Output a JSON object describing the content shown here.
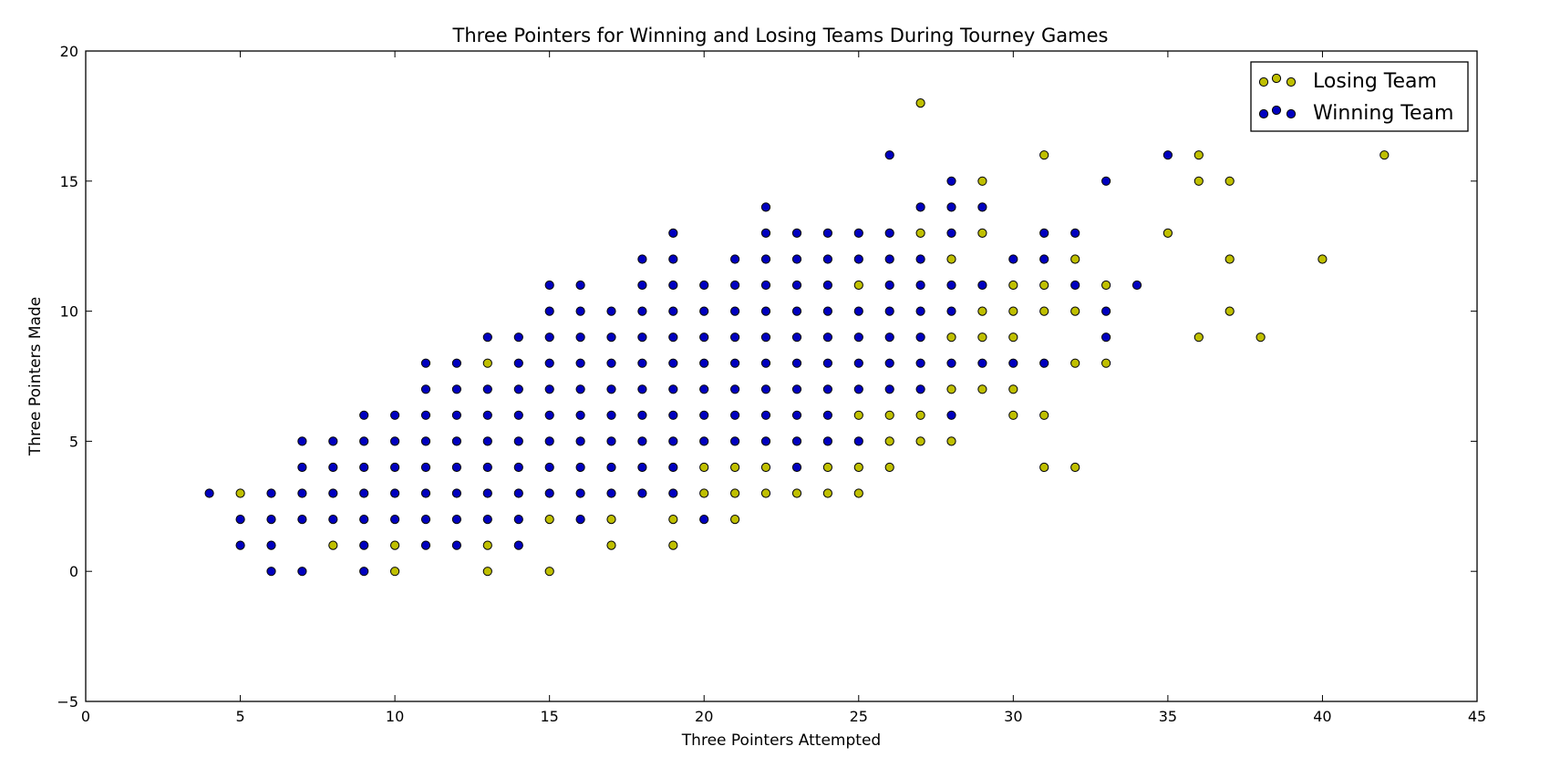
{
  "chart_data": {
    "type": "scatter",
    "title": "Three Pointers for Winning and Losing Teams During Tourney Games",
    "xlabel": "Three Pointers Attempted",
    "ylabel": "Three Pointers Made",
    "xlim": [
      0,
      45
    ],
    "ylim": [
      -5,
      20
    ],
    "xticks": [
      0,
      5,
      10,
      15,
      20,
      25,
      30,
      35,
      40,
      45
    ],
    "yticks": [
      -5,
      0,
      5,
      10,
      15,
      20
    ],
    "grid": false,
    "legend_position": "top-right",
    "series": [
      {
        "name": "Losing Team",
        "color": "#bfbf00",
        "points": [
          [
            5,
            3
          ],
          [
            10,
            0
          ],
          [
            10,
            1
          ],
          [
            8,
            1
          ],
          [
            13,
            0
          ],
          [
            13,
            1
          ],
          [
            13,
            8
          ],
          [
            15,
            0
          ],
          [
            15,
            2
          ],
          [
            17,
            1
          ],
          [
            17,
            2
          ],
          [
            19,
            1
          ],
          [
            19,
            2
          ],
          [
            20,
            3
          ],
          [
            20,
            4
          ],
          [
            21,
            2
          ],
          [
            21,
            3
          ],
          [
            21,
            4
          ],
          [
            22,
            3
          ],
          [
            22,
            4
          ],
          [
            23,
            3
          ],
          [
            24,
            3
          ],
          [
            24,
            4
          ],
          [
            25,
            3
          ],
          [
            25,
            4
          ],
          [
            25,
            6
          ],
          [
            25,
            11
          ],
          [
            26,
            4
          ],
          [
            26,
            5
          ],
          [
            26,
            6
          ],
          [
            27,
            5
          ],
          [
            27,
            6
          ],
          [
            27,
            13
          ],
          [
            27,
            18
          ],
          [
            28,
            5
          ],
          [
            28,
            7
          ],
          [
            28,
            9
          ],
          [
            28,
            12
          ],
          [
            29,
            7
          ],
          [
            29,
            9
          ],
          [
            29,
            10
          ],
          [
            29,
            13
          ],
          [
            29,
            15
          ],
          [
            30,
            6
          ],
          [
            30,
            7
          ],
          [
            30,
            9
          ],
          [
            30,
            10
          ],
          [
            30,
            11
          ],
          [
            31,
            4
          ],
          [
            31,
            6
          ],
          [
            31,
            10
          ],
          [
            31,
            11
          ],
          [
            31,
            16
          ],
          [
            32,
            4
          ],
          [
            32,
            8
          ],
          [
            32,
            10
          ],
          [
            32,
            12
          ],
          [
            33,
            8
          ],
          [
            33,
            11
          ],
          [
            35,
            13
          ],
          [
            36,
            9
          ],
          [
            36,
            15
          ],
          [
            36,
            16
          ],
          [
            37,
            10
          ],
          [
            37,
            12
          ],
          [
            37,
            15
          ],
          [
            38,
            9
          ],
          [
            40,
            12
          ],
          [
            42,
            16
          ]
        ]
      },
      {
        "name": "Winning Team",
        "color": "#0000bf",
        "points": [
          [
            4,
            3
          ],
          [
            5,
            1
          ],
          [
            5,
            2
          ],
          [
            6,
            0
          ],
          [
            6,
            1
          ],
          [
            6,
            2
          ],
          [
            6,
            3
          ],
          [
            7,
            0
          ],
          [
            7,
            2
          ],
          [
            7,
            3
          ],
          [
            7,
            4
          ],
          [
            7,
            5
          ],
          [
            8,
            2
          ],
          [
            8,
            3
          ],
          [
            8,
            4
          ],
          [
            8,
            5
          ],
          [
            9,
            0
          ],
          [
            9,
            1
          ],
          [
            9,
            2
          ],
          [
            9,
            3
          ],
          [
            9,
            4
          ],
          [
            9,
            5
          ],
          [
            9,
            6
          ],
          [
            10,
            2
          ],
          [
            10,
            3
          ],
          [
            10,
            4
          ],
          [
            10,
            5
          ],
          [
            10,
            6
          ],
          [
            11,
            1
          ],
          [
            11,
            2
          ],
          [
            11,
            3
          ],
          [
            11,
            4
          ],
          [
            11,
            5
          ],
          [
            11,
            6
          ],
          [
            11,
            7
          ],
          [
            11,
            8
          ],
          [
            12,
            1
          ],
          [
            12,
            2
          ],
          [
            12,
            3
          ],
          [
            12,
            4
          ],
          [
            12,
            5
          ],
          [
            12,
            6
          ],
          [
            12,
            7
          ],
          [
            12,
            8
          ],
          [
            13,
            2
          ],
          [
            13,
            3
          ],
          [
            13,
            4
          ],
          [
            13,
            5
          ],
          [
            13,
            6
          ],
          [
            13,
            7
          ],
          [
            13,
            9
          ],
          [
            14,
            1
          ],
          [
            14,
            2
          ],
          [
            14,
            3
          ],
          [
            14,
            4
          ],
          [
            14,
            5
          ],
          [
            14,
            6
          ],
          [
            14,
            7
          ],
          [
            14,
            8
          ],
          [
            14,
            9
          ],
          [
            15,
            3
          ],
          [
            15,
            4
          ],
          [
            15,
            5
          ],
          [
            15,
            6
          ],
          [
            15,
            7
          ],
          [
            15,
            8
          ],
          [
            15,
            9
          ],
          [
            15,
            10
          ],
          [
            15,
            11
          ],
          [
            16,
            2
          ],
          [
            16,
            3
          ],
          [
            16,
            4
          ],
          [
            16,
            5
          ],
          [
            16,
            6
          ],
          [
            16,
            7
          ],
          [
            16,
            8
          ],
          [
            16,
            9
          ],
          [
            16,
            10
          ],
          [
            16,
            11
          ],
          [
            17,
            3
          ],
          [
            17,
            4
          ],
          [
            17,
            5
          ],
          [
            17,
            6
          ],
          [
            17,
            7
          ],
          [
            17,
            8
          ],
          [
            17,
            9
          ],
          [
            17,
            10
          ],
          [
            18,
            3
          ],
          [
            18,
            4
          ],
          [
            18,
            5
          ],
          [
            18,
            6
          ],
          [
            18,
            7
          ],
          [
            18,
            8
          ],
          [
            18,
            9
          ],
          [
            18,
            10
          ],
          [
            18,
            11
          ],
          [
            18,
            12
          ],
          [
            19,
            3
          ],
          [
            19,
            4
          ],
          [
            19,
            5
          ],
          [
            19,
            6
          ],
          [
            19,
            7
          ],
          [
            19,
            8
          ],
          [
            19,
            9
          ],
          [
            19,
            10
          ],
          [
            19,
            11
          ],
          [
            19,
            12
          ],
          [
            19,
            13
          ],
          [
            20,
            2
          ],
          [
            20,
            5
          ],
          [
            20,
            6
          ],
          [
            20,
            7
          ],
          [
            20,
            8
          ],
          [
            20,
            9
          ],
          [
            20,
            10
          ],
          [
            20,
            11
          ],
          [
            21,
            5
          ],
          [
            21,
            6
          ],
          [
            21,
            7
          ],
          [
            21,
            8
          ],
          [
            21,
            9
          ],
          [
            21,
            10
          ],
          [
            21,
            11
          ],
          [
            21,
            12
          ],
          [
            22,
            5
          ],
          [
            22,
            6
          ],
          [
            22,
            7
          ],
          [
            22,
            8
          ],
          [
            22,
            9
          ],
          [
            22,
            10
          ],
          [
            22,
            11
          ],
          [
            22,
            12
          ],
          [
            22,
            13
          ],
          [
            22,
            14
          ],
          [
            23,
            4
          ],
          [
            23,
            5
          ],
          [
            23,
            6
          ],
          [
            23,
            7
          ],
          [
            23,
            8
          ],
          [
            23,
            9
          ],
          [
            23,
            10
          ],
          [
            23,
            11
          ],
          [
            23,
            12
          ],
          [
            23,
            13
          ],
          [
            24,
            5
          ],
          [
            24,
            6
          ],
          [
            24,
            7
          ],
          [
            24,
            8
          ],
          [
            24,
            9
          ],
          [
            24,
            10
          ],
          [
            24,
            11
          ],
          [
            24,
            12
          ],
          [
            24,
            13
          ],
          [
            25,
            5
          ],
          [
            25,
            7
          ],
          [
            25,
            8
          ],
          [
            25,
            9
          ],
          [
            25,
            10
          ],
          [
            25,
            12
          ],
          [
            25,
            13
          ],
          [
            26,
            7
          ],
          [
            26,
            8
          ],
          [
            26,
            9
          ],
          [
            26,
            10
          ],
          [
            26,
            11
          ],
          [
            26,
            12
          ],
          [
            26,
            13
          ],
          [
            26,
            16
          ],
          [
            27,
            7
          ],
          [
            27,
            8
          ],
          [
            27,
            9
          ],
          [
            27,
            10
          ],
          [
            27,
            11
          ],
          [
            27,
            12
          ],
          [
            27,
            14
          ],
          [
            28,
            6
          ],
          [
            28,
            8
          ],
          [
            28,
            10
          ],
          [
            28,
            11
          ],
          [
            28,
            13
          ],
          [
            28,
            14
          ],
          [
            28,
            15
          ],
          [
            29,
            8
          ],
          [
            29,
            11
          ],
          [
            29,
            14
          ],
          [
            30,
            8
          ],
          [
            30,
            12
          ],
          [
            31,
            8
          ],
          [
            31,
            12
          ],
          [
            31,
            13
          ],
          [
            32,
            11
          ],
          [
            32,
            13
          ],
          [
            33,
            9
          ],
          [
            33,
            10
          ],
          [
            33,
            15
          ],
          [
            34,
            11
          ],
          [
            35,
            16
          ]
        ]
      }
    ]
  }
}
